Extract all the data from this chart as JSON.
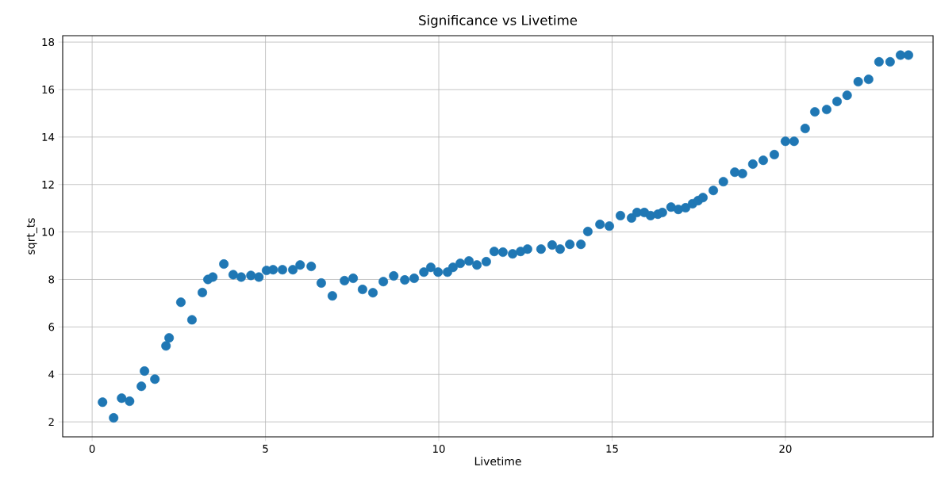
{
  "chart_data": {
    "type": "scatter",
    "title": "Significance vs Livetime",
    "xlabel": "Livetime",
    "ylabel": "sqrt_ts",
    "xlim": [
      -0.85,
      24.26
    ],
    "ylim": [
      1.37,
      18.27
    ],
    "xticks": [
      0,
      5,
      10,
      15,
      20
    ],
    "yticks": [
      2,
      4,
      6,
      8,
      10,
      12,
      14,
      16,
      18
    ],
    "grid": true,
    "marker": "circle",
    "series": [
      {
        "color": "#1f77b4",
        "x": [
          0.3,
          0.62,
          0.85,
          1.08,
          1.42,
          1.51,
          1.81,
          2.13,
          2.22,
          2.56,
          2.88,
          3.18,
          3.34,
          3.48,
          3.8,
          4.07,
          4.3,
          4.58,
          4.81,
          5.03,
          5.22,
          5.49,
          5.79,
          6.0,
          6.32,
          6.61,
          6.93,
          7.28,
          7.53,
          7.8,
          8.1,
          8.4,
          8.7,
          9.02,
          9.29,
          9.57,
          9.77,
          9.98,
          10.25,
          10.41,
          10.62,
          10.87,
          11.1,
          11.37,
          11.6,
          11.85,
          12.13,
          12.36,
          12.56,
          12.95,
          13.27,
          13.5,
          13.78,
          14.1,
          14.3,
          14.65,
          14.92,
          15.24,
          15.56,
          15.72,
          15.93,
          16.11,
          16.32,
          16.45,
          16.7,
          16.91,
          17.12,
          17.32,
          17.48,
          17.62,
          17.92,
          18.21,
          18.54,
          18.76,
          19.06,
          19.36,
          19.68,
          20.0,
          20.25,
          20.57,
          20.85,
          21.19,
          21.49,
          21.78,
          22.1,
          22.4,
          22.7,
          23.02,
          23.32,
          23.55
        ],
        "values": [
          2.83,
          2.17,
          3.0,
          2.87,
          3.5,
          4.14,
          3.8,
          5.2,
          5.54,
          7.04,
          6.3,
          7.45,
          8.0,
          8.1,
          8.65,
          8.2,
          8.1,
          8.17,
          8.1,
          8.38,
          8.41,
          8.41,
          8.41,
          8.61,
          8.55,
          7.85,
          7.31,
          7.95,
          8.05,
          7.58,
          7.44,
          7.91,
          8.15,
          7.98,
          8.05,
          8.31,
          8.51,
          8.31,
          8.31,
          8.51,
          8.68,
          8.78,
          8.61,
          8.75,
          9.18,
          9.15,
          9.08,
          9.18,
          9.28,
          9.28,
          9.45,
          9.28,
          9.48,
          9.48,
          10.02,
          10.32,
          10.25,
          10.69,
          10.59,
          10.82,
          10.82,
          10.69,
          10.75,
          10.82,
          11.05,
          10.95,
          11.02,
          11.19,
          11.32,
          11.45,
          11.75,
          12.12,
          12.52,
          12.46,
          12.86,
          13.02,
          13.26,
          13.82,
          13.82,
          14.36,
          15.06,
          15.16,
          15.5,
          15.76,
          16.33,
          16.43,
          17.17,
          17.17,
          17.45,
          17.45
        ]
      }
    ]
  }
}
